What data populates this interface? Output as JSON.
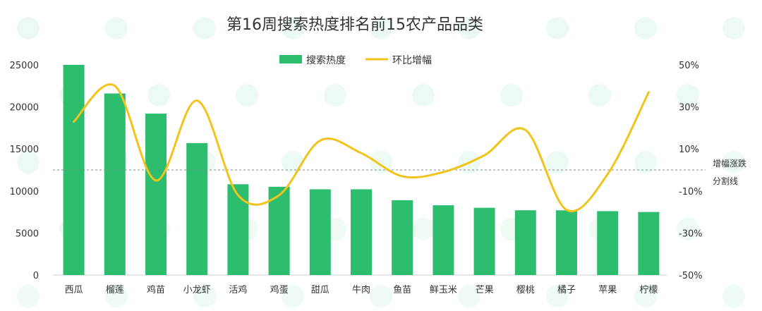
{
  "chart_data": {
    "type": "bar",
    "title": "第16周搜索热度排名前15农产品品类",
    "categories": [
      "西瓜",
      "榴莲",
      "鸡苗",
      "小龙虾",
      "活鸡",
      "鸡蛋",
      "甜瓜",
      "牛肉",
      "鱼苗",
      "鲜玉米",
      "芒果",
      "樱桃",
      "橘子",
      "苹果",
      "柠檬"
    ],
    "series": [
      {
        "name": "搜索热度",
        "type": "bar",
        "axis": "left",
        "color": "#2dbd6e",
        "values": [
          25000,
          21600,
          19200,
          15700,
          10800,
          10500,
          10200,
          10200,
          8900,
          8300,
          8000,
          7700,
          7700,
          7600,
          7500
        ]
      },
      {
        "name": "环比增幅",
        "type": "line",
        "axis": "right",
        "color": "#f2c31b",
        "smooth": true,
        "values": [
          23,
          40,
          -5,
          33,
          -12,
          -12,
          14,
          8,
          -3,
          -1,
          7,
          19,
          -19,
          -2,
          37
        ]
      }
    ],
    "y_left": {
      "ylim": [
        0,
        25000
      ],
      "ticks": [
        "25000",
        "20000",
        "15000",
        "10000",
        "5000",
        "0"
      ]
    },
    "y_right": {
      "ylim": [
        -50,
        50
      ],
      "ticks": [
        "50%",
        "30%",
        "10%",
        "-10%",
        "-30%",
        "-50%"
      ]
    },
    "reference_line": {
      "value": 0,
      "axis": "right",
      "label_line1": "增幅涨跌",
      "label_line2": "分割线"
    },
    "legend": {
      "position": "top-center"
    },
    "grid": false
  }
}
